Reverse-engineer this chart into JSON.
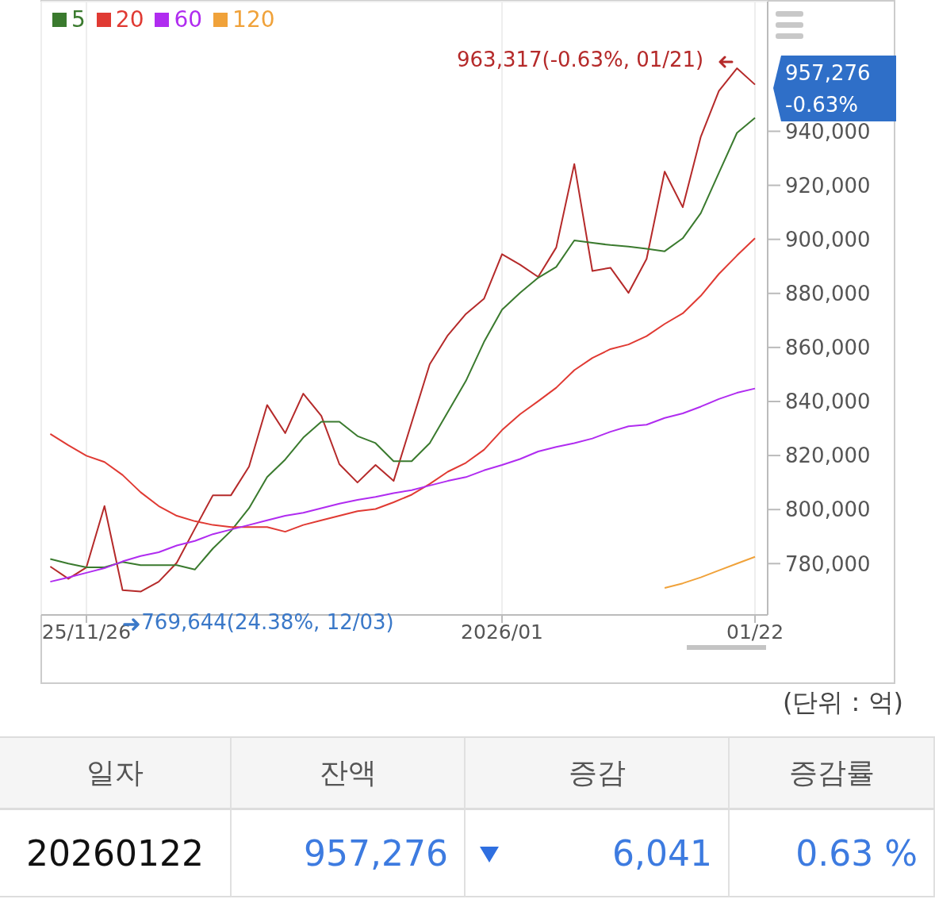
{
  "chart_data": {
    "type": "line",
    "categories": [
      null,
      null,
      "25/11/26",
      null,
      null,
      null,
      null,
      null,
      null,
      null,
      null,
      null,
      null,
      null,
      null,
      null,
      null,
      null,
      null,
      null,
      null,
      null,
      null,
      null,
      null,
      "2026/01",
      null,
      null,
      null,
      null,
      null,
      null,
      null,
      null,
      null,
      null,
      null,
      null,
      null,
      "01/22"
    ],
    "series": [
      {
        "color": "#b52a2a",
        "values": [
          778900,
          774400,
          778600,
          801300,
          770200,
          769644,
          773300,
          780300,
          792900,
          805300,
          805300,
          815900,
          838700,
          828300,
          842900,
          834700,
          816800,
          810000,
          816500,
          810600,
          832200,
          853800,
          864500,
          872400,
          878000,
          894500,
          890600,
          886100,
          897000,
          927900,
          888300,
          889500,
          880200,
          892800,
          925100,
          911900,
          938000,
          954900,
          963317,
          957276
        ]
      },
      {
        "name": "5",
        "color": "#3a7a2e",
        "values": [
          781700,
          780000,
          778600,
          778600,
          780600,
          779400,
          779400,
          779400,
          777800,
          785600,
          792100,
          800500,
          812000,
          818500,
          826600,
          832500,
          832500,
          827200,
          824600,
          817900,
          817900,
          824600,
          836100,
          847600,
          862000,
          874000,
          880200,
          885800,
          889800,
          899600,
          898700,
          897900,
          897300,
          896500,
          895600,
          900400,
          909700,
          924600,
          939400,
          945000
        ]
      },
      {
        "name": "20",
        "color": "#e03a33",
        "values": [
          828000,
          823800,
          819900,
          817600,
          812800,
          806400,
          801300,
          797700,
          795700,
          794300,
          793500,
          793500,
          793500,
          791800,
          794300,
          796000,
          797700,
          799400,
          800200,
          802700,
          805500,
          809500,
          814000,
          817300,
          822100,
          829400,
          835300,
          840100,
          845100,
          851600,
          856100,
          859400,
          861100,
          864200,
          868700,
          872600,
          879100,
          887200,
          894000,
          900400
        ]
      },
      {
        "name": "60",
        "color": "#b02cf0",
        "values": [
          773300,
          774900,
          776600,
          778300,
          780800,
          782800,
          784200,
          786700,
          788400,
          790900,
          792600,
          794300,
          796000,
          797700,
          798800,
          800500,
          802200,
          803600,
          804700,
          806100,
          807200,
          808900,
          810600,
          812000,
          814500,
          816500,
          818700,
          821500,
          823200,
          824600,
          826300,
          828800,
          830800,
          831400,
          833900,
          835600,
          838100,
          840900,
          843200,
          844800
        ]
      },
      {
        "name": "120",
        "color": "#f0a23a",
        "values": [
          null,
          null,
          null,
          null,
          null,
          null,
          null,
          null,
          null,
          null,
          null,
          null,
          null,
          null,
          null,
          null,
          null,
          null,
          null,
          null,
          null,
          null,
          null,
          null,
          null,
          null,
          null,
          null,
          null,
          null,
          null,
          null,
          null,
          null,
          771000,
          772700,
          774900,
          777500,
          780000,
          782500
        ]
      }
    ],
    "ylim": [
      761000,
      988000
    ],
    "yticks": [
      {
        "value": 780000,
        "label": "780,000"
      },
      {
        "value": 800000,
        "label": "800,000"
      },
      {
        "value": 820000,
        "label": "820,000"
      },
      {
        "value": 840000,
        "label": "840,000"
      },
      {
        "value": 860000,
        "label": "860,000"
      },
      {
        "value": 880000,
        "label": "880,000"
      },
      {
        "value": 900000,
        "label": "900,000"
      },
      {
        "value": 920000,
        "label": "920,000"
      },
      {
        "value": 940000,
        "label": "940,000"
      }
    ],
    "grid": true,
    "legend": "top left",
    "annotations": [
      "963,317(-0.63%, 01/21)",
      "769,644(24.38%, 12/03)",
      "957,276 -0.63%",
      "(단위 : 억)",
      "일자",
      "잔액",
      "증감",
      "증감률",
      "20260122",
      "957,276",
      "6,041",
      "0.63 %"
    ]
  }
}
